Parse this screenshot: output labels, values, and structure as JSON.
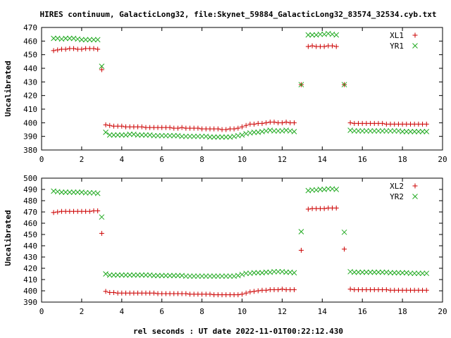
{
  "colors": {
    "red": "#cc0000",
    "green": "#22aa22",
    "axis": "#000000",
    "background": "#ffffff"
  },
  "chart_data": [
    {
      "type": "scatter",
      "title": "HIRES continuum, GalacticLong32, file:Skynet_59884_GalacticLong32_83574_32534.cyb.txt",
      "xlabel": "",
      "ylabel": "Uncalibrated",
      "xlim": [
        0,
        20
      ],
      "ylim": [
        380,
        470
      ],
      "xticks": [
        "0",
        "2",
        "4",
        "6",
        "8",
        "10",
        "12",
        "14",
        "16",
        "18",
        "20"
      ],
      "yticks": [
        "380",
        "390",
        "400",
        "410",
        "420",
        "430",
        "440",
        "450",
        "460",
        "470"
      ],
      "legend_position": "top-right",
      "series": [
        {
          "name": "XL1",
          "marker": "plus",
          "color": "#cc0000",
          "x": [
            0.6,
            0.8,
            1.0,
            1.2,
            1.4,
            1.6,
            1.8,
            2.0,
            2.2,
            2.4,
            2.6,
            2.8,
            3.0,
            3.2,
            3.4,
            3.6,
            3.8,
            4.0,
            4.2,
            4.4,
            4.6,
            4.8,
            5.0,
            5.2,
            5.4,
            5.6,
            5.8,
            6.0,
            6.2,
            6.4,
            6.6,
            6.8,
            7.0,
            7.2,
            7.4,
            7.6,
            7.8,
            8.0,
            8.2,
            8.4,
            8.6,
            8.8,
            9.0,
            9.2,
            9.4,
            9.6,
            9.8,
            10.0,
            10.2,
            10.4,
            10.6,
            10.8,
            11.0,
            11.2,
            11.4,
            11.6,
            11.8,
            12.0,
            12.2,
            12.4,
            12.6,
            12.95,
            13.3,
            13.5,
            13.7,
            13.9,
            14.1,
            14.3,
            14.5,
            14.7,
            15.1,
            15.4,
            15.6,
            15.8,
            16.0,
            16.2,
            16.4,
            16.6,
            16.8,
            17.0,
            17.2,
            17.4,
            17.6,
            17.8,
            18.0,
            18.2,
            18.4,
            18.6,
            18.8,
            19.0,
            19.2
          ],
          "y": [
            453,
            453.5,
            454,
            454,
            454.5,
            454.5,
            454,
            454,
            454.5,
            454.5,
            454.5,
            454,
            439,
            398.5,
            398,
            397.5,
            397.5,
            397.5,
            397,
            397,
            397,
            397,
            397,
            396.5,
            396.5,
            396.5,
            396.5,
            396.5,
            396.5,
            396.5,
            396,
            396,
            396.5,
            396,
            396,
            396,
            396,
            395.5,
            395.5,
            395.5,
            395.5,
            395.5,
            395,
            395,
            395.5,
            395.5,
            396,
            397,
            398,
            399,
            399,
            399.5,
            399.5,
            400,
            400.5,
            400.5,
            400,
            400,
            400.5,
            400,
            400,
            428,
            456,
            456.5,
            456,
            456,
            456,
            456.5,
            456.5,
            456,
            428,
            400,
            399.5,
            399.5,
            399.5,
            399.5,
            399.5,
            399.5,
            399.5,
            399.5,
            399,
            399,
            399,
            399,
            399,
            399,
            399,
            399,
            399,
            399,
            399
          ]
        },
        {
          "name": "YR1",
          "marker": "cross",
          "color": "#22aa22",
          "x": [
            0.6,
            0.8,
            1.0,
            1.2,
            1.4,
            1.6,
            1.8,
            2.0,
            2.2,
            2.4,
            2.6,
            2.8,
            3.0,
            3.2,
            3.4,
            3.6,
            3.8,
            4.0,
            4.2,
            4.4,
            4.6,
            4.8,
            5.0,
            5.2,
            5.4,
            5.6,
            5.8,
            6.0,
            6.2,
            6.4,
            6.6,
            6.8,
            7.0,
            7.2,
            7.4,
            7.6,
            7.8,
            8.0,
            8.2,
            8.4,
            8.6,
            8.8,
            9.0,
            9.2,
            9.4,
            9.6,
            9.8,
            10.0,
            10.2,
            10.4,
            10.6,
            10.8,
            11.0,
            11.2,
            11.4,
            11.6,
            11.8,
            12.0,
            12.2,
            12.4,
            12.6,
            12.95,
            13.3,
            13.5,
            13.7,
            13.9,
            14.1,
            14.3,
            14.5,
            14.7,
            15.1,
            15.4,
            15.6,
            15.8,
            16.0,
            16.2,
            16.4,
            16.6,
            16.8,
            17.0,
            17.2,
            17.4,
            17.6,
            17.8,
            18.0,
            18.2,
            18.4,
            18.6,
            18.8,
            19.0,
            19.2
          ],
          "y": [
            462,
            462,
            461.5,
            462,
            462,
            462,
            461.5,
            461,
            461,
            461,
            461,
            461,
            441.5,
            393,
            391,
            391,
            391,
            391,
            391,
            391.5,
            391.5,
            391,
            391,
            391,
            391,
            390.5,
            390.5,
            390.5,
            390.5,
            390.5,
            390.5,
            390.5,
            390,
            390,
            390,
            390,
            390,
            390,
            390,
            389.5,
            389.5,
            389.5,
            389.5,
            389.5,
            389.5,
            390,
            390.5,
            391,
            392,
            392.5,
            393,
            393,
            393.5,
            394,
            394.5,
            394,
            394,
            394,
            394.5,
            394,
            393.5,
            428,
            464.5,
            464.5,
            464.5,
            465,
            465,
            465.5,
            465,
            464.5,
            428,
            394.5,
            394,
            394,
            394,
            394,
            394,
            394,
            394,
            394,
            394,
            394,
            394,
            394,
            393.5,
            393.5,
            393.5,
            393.5,
            393.5,
            393.5,
            393.5
          ]
        }
      ]
    },
    {
      "type": "scatter",
      "title": "",
      "xlabel": "rel seconds : UT date 2022-11-01T00:22:12.430",
      "ylabel": "Uncalibrated",
      "xlim": [
        0,
        20
      ],
      "ylim": [
        390,
        500
      ],
      "xticks": [
        "0",
        "2",
        "4",
        "6",
        "8",
        "10",
        "12",
        "14",
        "16",
        "18",
        "20"
      ],
      "yticks": [
        "390",
        "400",
        "410",
        "420",
        "430",
        "440",
        "450",
        "460",
        "470",
        "480",
        "490",
        "500"
      ],
      "legend_position": "top-right",
      "series": [
        {
          "name": "XL2",
          "marker": "plus",
          "color": "#cc0000",
          "x": [
            0.6,
            0.8,
            1.0,
            1.2,
            1.4,
            1.6,
            1.8,
            2.0,
            2.2,
            2.4,
            2.6,
            2.8,
            3.0,
            3.2,
            3.4,
            3.6,
            3.8,
            4.0,
            4.2,
            4.4,
            4.6,
            4.8,
            5.0,
            5.2,
            5.4,
            5.6,
            5.8,
            6.0,
            6.2,
            6.4,
            6.6,
            6.8,
            7.0,
            7.2,
            7.4,
            7.6,
            7.8,
            8.0,
            8.2,
            8.4,
            8.6,
            8.8,
            9.0,
            9.2,
            9.4,
            9.6,
            9.8,
            10.0,
            10.2,
            10.4,
            10.6,
            10.8,
            11.0,
            11.2,
            11.4,
            11.6,
            11.8,
            12.0,
            12.2,
            12.4,
            12.6,
            12.95,
            13.3,
            13.5,
            13.7,
            13.9,
            14.1,
            14.3,
            14.5,
            14.7,
            15.1,
            15.4,
            15.6,
            15.8,
            16.0,
            16.2,
            16.4,
            16.6,
            16.8,
            17.0,
            17.2,
            17.4,
            17.6,
            17.8,
            18.0,
            18.2,
            18.4,
            18.6,
            18.8,
            19.0,
            19.2
          ],
          "y": [
            469.5,
            470,
            470.5,
            470.5,
            470.5,
            470.5,
            470.5,
            470.5,
            470.5,
            470.5,
            471,
            471,
            451,
            399.5,
            398.5,
            398.5,
            398,
            398,
            398,
            398,
            398,
            398,
            398,
            398,
            398,
            398,
            397.5,
            397.5,
            397.5,
            397.5,
            397.5,
            397.5,
            397.5,
            397.5,
            397,
            397,
            397,
            397,
            397,
            397,
            396.5,
            396.5,
            396.5,
            396.5,
            396.5,
            396.5,
            396.5,
            397,
            398,
            399,
            399.5,
            400,
            400.5,
            400.5,
            401,
            401,
            401,
            401.5,
            401,
            401,
            401,
            436,
            472.5,
            473,
            473,
            473,
            473,
            473.5,
            473.5,
            473.5,
            437,
            401.5,
            401,
            401,
            401,
            401,
            401,
            401,
            401,
            401,
            401,
            400.5,
            400.5,
            400.5,
            400.5,
            400.5,
            400.5,
            400.5,
            400.5,
            400.5,
            400.5
          ]
        },
        {
          "name": "YR2",
          "marker": "cross",
          "color": "#22aa22",
          "x": [
            0.6,
            0.8,
            1.0,
            1.2,
            1.4,
            1.6,
            1.8,
            2.0,
            2.2,
            2.4,
            2.6,
            2.8,
            3.0,
            3.2,
            3.4,
            3.6,
            3.8,
            4.0,
            4.2,
            4.4,
            4.6,
            4.8,
            5.0,
            5.2,
            5.4,
            5.6,
            5.8,
            6.0,
            6.2,
            6.4,
            6.6,
            6.8,
            7.0,
            7.2,
            7.4,
            7.6,
            7.8,
            8.0,
            8.2,
            8.4,
            8.6,
            8.8,
            9.0,
            9.2,
            9.4,
            9.6,
            9.8,
            10.0,
            10.2,
            10.4,
            10.6,
            10.8,
            11.0,
            11.2,
            11.4,
            11.6,
            11.8,
            12.0,
            12.2,
            12.4,
            12.6,
            12.95,
            13.3,
            13.5,
            13.7,
            13.9,
            14.1,
            14.3,
            14.5,
            14.7,
            15.1,
            15.4,
            15.6,
            15.8,
            16.0,
            16.2,
            16.4,
            16.6,
            16.8,
            17.0,
            17.2,
            17.4,
            17.6,
            17.8,
            18.0,
            18.2,
            18.4,
            18.6,
            18.8,
            19.0,
            19.2
          ],
          "y": [
            488.5,
            488,
            487.5,
            487.5,
            487.5,
            487.5,
            487.5,
            487.5,
            487,
            487,
            487,
            486.5,
            465.5,
            415,
            414,
            414,
            414,
            414,
            414,
            414,
            414,
            414,
            414,
            414,
            414,
            413.5,
            413.5,
            413.5,
            413.5,
            413.5,
            413.5,
            413.5,
            413.5,
            413,
            413,
            413,
            413,
            413,
            413,
            413,
            413,
            413,
            413,
            413,
            413,
            413,
            413.5,
            414.5,
            415.5,
            415.5,
            416,
            416,
            416,
            416.5,
            416.5,
            417,
            417,
            417,
            416.5,
            416.5,
            416,
            452.5,
            489,
            489.5,
            489.5,
            490,
            490,
            490.5,
            490.5,
            490,
            452,
            417,
            416.5,
            416.5,
            416.5,
            416.5,
            416.5,
            416.5,
            416.5,
            416.5,
            416.5,
            416,
            416,
            416,
            416,
            416,
            415.5,
            415.5,
            415.5,
            415.5,
            415.5
          ]
        }
      ]
    }
  ]
}
